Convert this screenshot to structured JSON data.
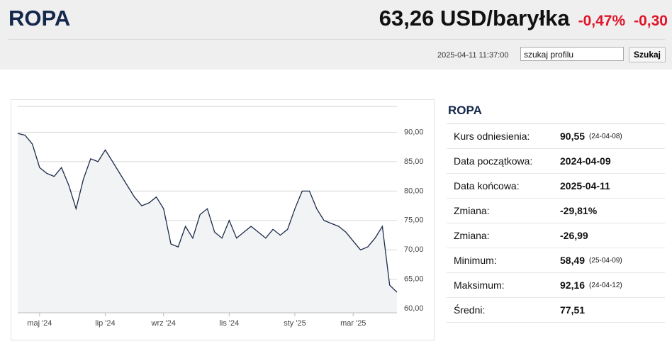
{
  "header": {
    "title": "ROPA",
    "price": "63,26 USD/baryłka",
    "change_pct": "-0,47%",
    "change_abs": "-0,30",
    "timestamp": "2025-04-11 11:37:00",
    "search_placeholder": "szukaj profilu",
    "search_button": "Szukaj"
  },
  "chart_data": {
    "type": "line",
    "color": "#1c2b4a",
    "area_color": "#f2f3f5",
    "grid": true,
    "categories": [
      null,
      null,
      null,
      "maj '24",
      null,
      null,
      null,
      null,
      null,
      null,
      null,
      null,
      "lip '24",
      null,
      null,
      null,
      null,
      null,
      null,
      null,
      "wrz '24",
      null,
      null,
      null,
      null,
      null,
      null,
      null,
      null,
      "lis '24",
      null,
      null,
      null,
      null,
      null,
      null,
      null,
      null,
      "sty '25",
      null,
      null,
      null,
      null,
      null,
      null,
      null,
      "mar '25",
      null,
      null,
      null,
      null,
      null,
      null
    ],
    "values": [
      89.8,
      89.5,
      88,
      84,
      83,
      82.5,
      84,
      81,
      77,
      82,
      85.5,
      85,
      87,
      85,
      83,
      81,
      79,
      77.5,
      78,
      79,
      77,
      71,
      70.5,
      74,
      72,
      76,
      77,
      73,
      72,
      75,
      72,
      73,
      74,
      73,
      72,
      73.5,
      72.5,
      73.5,
      77,
      80,
      80,
      77,
      75,
      74.5,
      74,
      73,
      71.5,
      70,
      70.5,
      72,
      74,
      64,
      62.8
    ],
    "ylim": [
      59.3,
      94.4
    ],
    "yticks": [
      {
        "value": 60,
        "label": "60,00"
      },
      {
        "value": 65,
        "label": "65,00"
      },
      {
        "value": 70,
        "label": "70,00"
      },
      {
        "value": 75,
        "label": "75,00"
      },
      {
        "value": 80,
        "label": "80,00"
      },
      {
        "value": 85,
        "label": "85,00"
      },
      {
        "value": 90,
        "label": "90,00"
      }
    ]
  },
  "stats": {
    "title": "ROPA",
    "rows": [
      {
        "label": "Kurs odniesienia:",
        "value": "90,55",
        "note": "(24-04-08)"
      },
      {
        "label": "Data początkowa:",
        "value": "2024-04-09"
      },
      {
        "label": "Data końcowa:",
        "value": "2025-04-11"
      },
      {
        "label": "Zmiana:",
        "value": "-29,81%"
      },
      {
        "label": "Zmiana:",
        "value": "-26,99"
      },
      {
        "label": "Minimum:",
        "value": "58,49",
        "note": "(25-04-09)"
      },
      {
        "label": "Maksimum:",
        "value": "92,16",
        "note": "(24-04-12)"
      },
      {
        "label": "Średni:",
        "value": "77,51"
      }
    ]
  }
}
